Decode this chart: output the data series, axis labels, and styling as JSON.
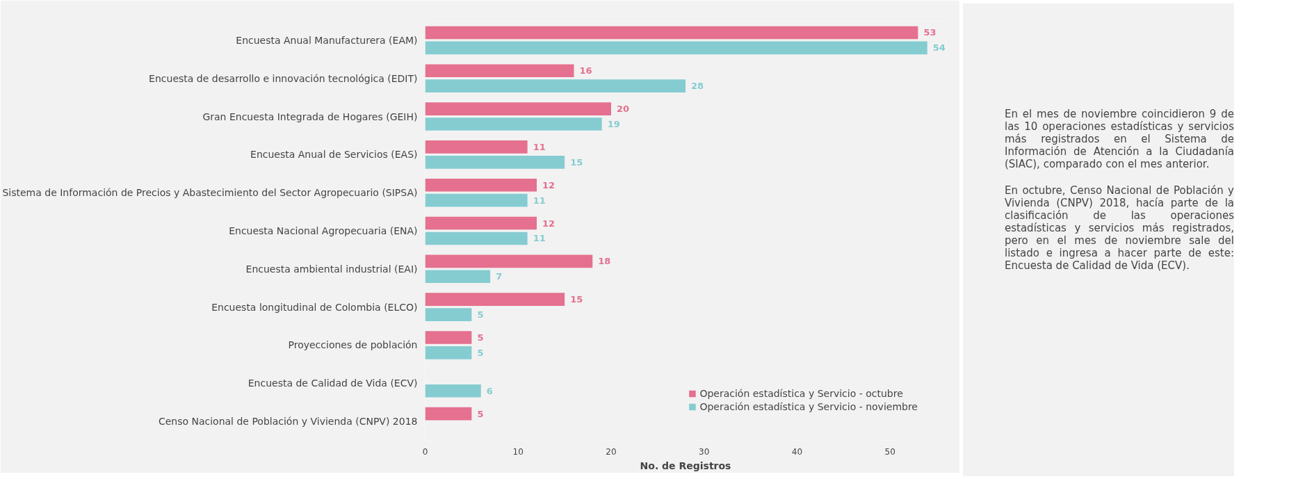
{
  "chart_data": {
    "type": "bar",
    "orientation": "horizontal",
    "xlabel": "No. de Registros",
    "categories": [
      "Encuesta Anual Manufacturera (EAM)",
      "Encuesta de desarrollo e innovación tecnológica (EDIT)",
      "Gran Encuesta Integrada de Hogares (GEIH)",
      "Encuesta Anual de Servicios (EAS)",
      "Sistema de Información de Precios y Abastecimiento del Sector Agropecuario (SIPSA)",
      "Encuesta Nacional Agropecuaria (ENA)",
      "Encuesta ambiental industrial (EAI)",
      "Encuesta longitudinal de Colombia (ELCO)",
      "Proyecciones de población",
      "Encuesta de Calidad de Vida (ECV)",
      "Censo Nacional de Población y Vivienda (CNPV) 2018"
    ],
    "series": [
      {
        "name": "Operación estadística y Servicio - octubre",
        "color": "#e5708f",
        "values": [
          53,
          16,
          20,
          11,
          12,
          12,
          18,
          15,
          5,
          null,
          5
        ]
      },
      {
        "name": "Operación estadística y Servicio - noviembre",
        "color": "#85ccd1",
        "values": [
          54,
          28,
          19,
          15,
          11,
          11,
          7,
          5,
          5,
          6,
          null
        ]
      }
    ],
    "xlim": [
      0,
      56
    ],
    "xticks": [
      0,
      10,
      20,
      30,
      40,
      50
    ],
    "grid": false,
    "legend": "bottom right",
    "data_labels": true,
    "annotations": [
      "En el mes de noviembre coincidieron 9 de las 10 operaciones estadísticas y servicios más registrados en el Sistema de Información de Atención a la Ciudadanía (SIAC), comparado con el mes anterior.",
      "En octubre, Censo Nacional de Población y Vivienda (CNPV) 2018, hacía parte de la clasificación de las operaciones estadísticas y servicios más registrados, pero en el mes de noviembre sale del listado e ingresa a hacer parte de este: Encuesta de Calidad de Vida (ECV)."
    ]
  }
}
